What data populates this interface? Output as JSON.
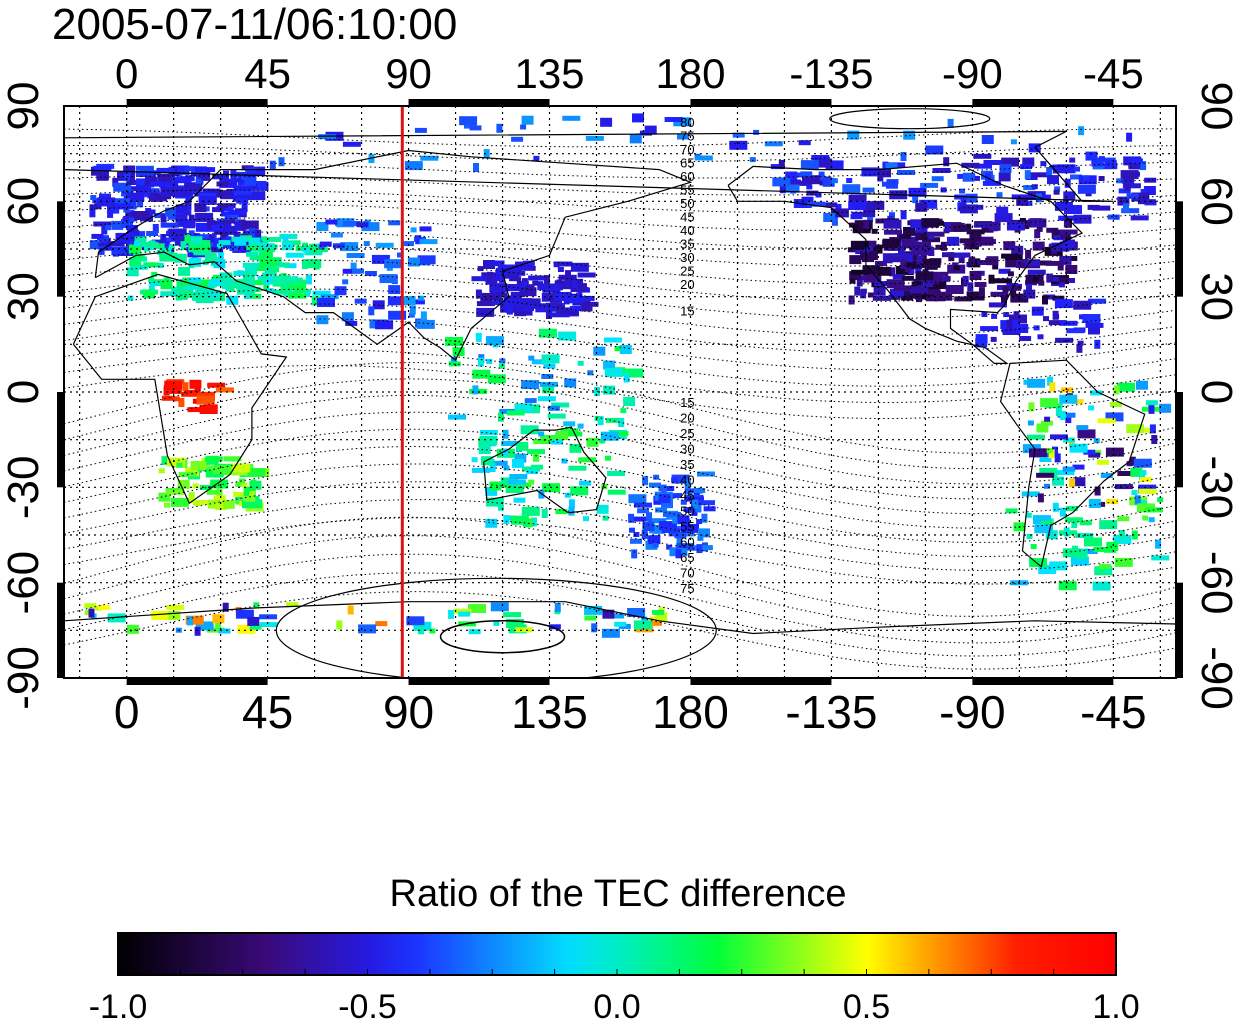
{
  "timestamp": "2005-07-11/06:10:00",
  "colorbar": {
    "title": "Ratio of the TEC difference",
    "range": [
      -1.0,
      1.0
    ],
    "tick_labels": [
      "-1.0",
      "-0.5",
      "0.0",
      "0.5",
      "1.0"
    ],
    "tick_values": [
      -1.0,
      -0.5,
      0.0,
      0.5,
      1.0
    ],
    "colormap": [
      "#000000",
      "#3a0a7a",
      "#1f1fff",
      "#00e6ff",
      "#00ff3a",
      "#ffff00",
      "#ff1f00",
      "#ff0000"
    ]
  },
  "map": {
    "projection": "cylindrical",
    "lon_tick_labels": [
      "0",
      "45",
      "90",
      "135",
      "180",
      "-135",
      "-90",
      "-45"
    ],
    "lon_tick_values": [
      0,
      45,
      90,
      135,
      180,
      225,
      270,
      315
    ],
    "lat_tick_labels": [
      "90",
      "60",
      "30",
      "0",
      "-30",
      "-60",
      "-90"
    ],
    "lat_tick_values": [
      90,
      60,
      30,
      0,
      -30,
      -60,
      -90
    ],
    "lon_range": [
      -20,
      335
    ],
    "lat_range": [
      -90,
      90
    ],
    "marker_line_lon": 88,
    "marker_line_color": "#e01010",
    "magnetic_contour_labels_north": [
      "80",
      "75",
      "70",
      "65",
      "60",
      "55",
      "50",
      "45",
      "40",
      "35",
      "30",
      "25",
      "20",
      "15"
    ],
    "magnetic_contour_labels_south": [
      "15",
      "20",
      "25",
      "30",
      "35",
      "40",
      "45",
      "50",
      "55",
      "60",
      "65",
      "70",
      "75"
    ]
  }
}
